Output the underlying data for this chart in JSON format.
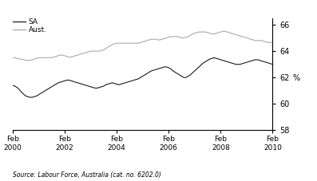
{
  "ylabel": "%",
  "source": "Source: Labour Force, Australia (cat. no. 6202.0)",
  "ylim": [
    58,
    66.5
  ],
  "yticks": [
    58,
    60,
    62,
    64,
    66
  ],
  "x_tick_labels": [
    "Feb\n2000",
    "Feb\n2002",
    "Feb\n2004",
    "Feb\n2006",
    "Feb\n2008",
    "Feb\n2010"
  ],
  "x_tick_positions": [
    0,
    24,
    48,
    72,
    96,
    120
  ],
  "sa_color": "#1a1a1a",
  "aust_color": "#aaaaaa",
  "background_color": "#ffffff",
  "legend_sa": "SA",
  "legend_aust": "Aust.",
  "sa_data": [
    61.4,
    61.35,
    61.25,
    61.1,
    60.9,
    60.75,
    60.6,
    60.55,
    60.5,
    60.5,
    60.55,
    60.6,
    60.7,
    60.8,
    60.9,
    61.0,
    61.1,
    61.2,
    61.3,
    61.4,
    61.5,
    61.6,
    61.65,
    61.7,
    61.75,
    61.8,
    61.8,
    61.75,
    61.7,
    61.65,
    61.6,
    61.55,
    61.5,
    61.45,
    61.4,
    61.35,
    61.3,
    61.25,
    61.2,
    61.2,
    61.25,
    61.3,
    61.35,
    61.45,
    61.5,
    61.55,
    61.6,
    61.55,
    61.5,
    61.45,
    61.5,
    61.55,
    61.6,
    61.65,
    61.7,
    61.75,
    61.8,
    61.85,
    61.9,
    62.0,
    62.1,
    62.2,
    62.3,
    62.4,
    62.5,
    62.55,
    62.6,
    62.65,
    62.7,
    62.75,
    62.8,
    62.8,
    62.75,
    62.65,
    62.5,
    62.4,
    62.3,
    62.2,
    62.1,
    62.0,
    62.0,
    62.1,
    62.2,
    62.35,
    62.5,
    62.65,
    62.8,
    62.95,
    63.1,
    63.2,
    63.3,
    63.4,
    63.45,
    63.5,
    63.45,
    63.4,
    63.35,
    63.3,
    63.25,
    63.2,
    63.15,
    63.1,
    63.05,
    63.0,
    63.0,
    63.0,
    63.05,
    63.1,
    63.15,
    63.2,
    63.25,
    63.3,
    63.35,
    63.35,
    63.3,
    63.25,
    63.2,
    63.15,
    63.1,
    63.05,
    63.0,
    63.0
  ],
  "aust_data": [
    63.5,
    63.5,
    63.45,
    63.4,
    63.4,
    63.35,
    63.3,
    63.3,
    63.3,
    63.35,
    63.4,
    63.45,
    63.5,
    63.5,
    63.5,
    63.5,
    63.5,
    63.5,
    63.5,
    63.55,
    63.6,
    63.65,
    63.7,
    63.7,
    63.65,
    63.6,
    63.55,
    63.55,
    63.6,
    63.65,
    63.7,
    63.75,
    63.8,
    63.85,
    63.9,
    63.95,
    64.0,
    64.0,
    64.0,
    64.0,
    64.0,
    64.05,
    64.1,
    64.2,
    64.3,
    64.4,
    64.5,
    64.55,
    64.6,
    64.6,
    64.6,
    64.6,
    64.6,
    64.6,
    64.6,
    64.6,
    64.6,
    64.6,
    64.6,
    64.65,
    64.7,
    64.75,
    64.8,
    64.85,
    64.9,
    64.9,
    64.9,
    64.85,
    64.85,
    64.9,
    64.95,
    65.0,
    65.05,
    65.1,
    65.1,
    65.1,
    65.1,
    65.05,
    65.0,
    65.0,
    65.05,
    65.1,
    65.2,
    65.3,
    65.35,
    65.4,
    65.45,
    65.45,
    65.45,
    65.45,
    65.4,
    65.35,
    65.3,
    65.3,
    65.35,
    65.4,
    65.45,
    65.5,
    65.5,
    65.45,
    65.4,
    65.35,
    65.3,
    65.25,
    65.2,
    65.15,
    65.1,
    65.05,
    65.0,
    64.95,
    64.9,
    64.85,
    64.8,
    64.8,
    64.8,
    64.8,
    64.75,
    64.7,
    64.65,
    64.65,
    64.7,
    64.7
  ]
}
